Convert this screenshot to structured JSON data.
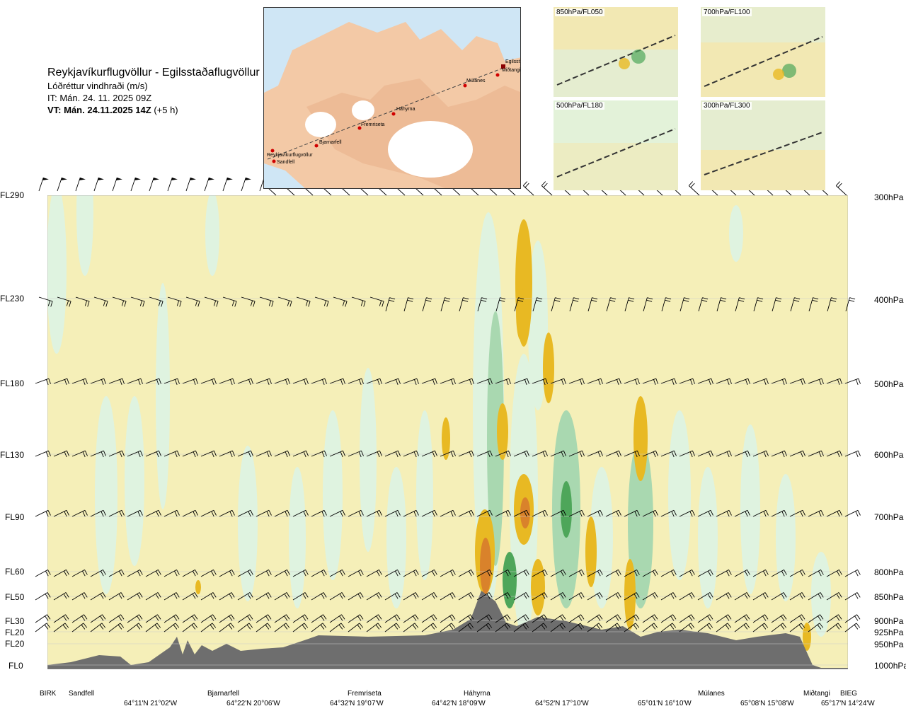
{
  "title": {
    "route": "Reykjavíkurflugvöllur - Egilsstaðaflugvöllur",
    "quantity": "Lóðréttur vindhraði (m/s)",
    "it": "IT: Mán. 24. 11. 2025 09Z",
    "vt_bold": "VT: Mán. 24.11.2025 14Z",
    "vt_rest": " (+5 h)"
  },
  "route_map": {
    "waypoints": [
      "Reykjavíkurflugvöllur",
      "Sandfell",
      "Bjarnarfell",
      "Fremriseta",
      "Háhyrna",
      "Múlanes",
      "Egilsst",
      "Miðtangi"
    ]
  },
  "mini_maps": [
    {
      "label": "850hPa/FL050"
    },
    {
      "label": "700hPa/FL100"
    },
    {
      "label": "500hPa/FL180"
    },
    {
      "label": "300hPa/FL300"
    }
  ],
  "chart_data": {
    "type": "heatmap",
    "title": "Lóðréttur vindhraði (m/s)",
    "y_levels": [
      {
        "fl": "FL290",
        "hpa": "300hPa"
      },
      {
        "fl": "FL230",
        "hpa": "400hPa"
      },
      {
        "fl": "FL180",
        "hpa": "500hPa"
      },
      {
        "fl": "FL130",
        "hpa": "600hPa"
      },
      {
        "fl": "FL90",
        "hpa": "700hPa"
      },
      {
        "fl": "FL60",
        "hpa": "800hPa"
      },
      {
        "fl": "FL50",
        "hpa": "850hPa"
      },
      {
        "fl": "FL30",
        "hpa": "900hPa"
      },
      {
        "fl": "FL20",
        "hpa": "925hPa"
      },
      {
        "fl": "FL20",
        "hpa": "950hPa"
      },
      {
        "fl": "FL0",
        "hpa": "1000hPa"
      }
    ],
    "x_waypoints": [
      "BIRK",
      "Sandfell",
      "Bjarnarfell",
      "Fremriseta",
      "Háhyrna",
      "Múlanes",
      "Miðtangi",
      "BIEG"
    ],
    "x_coords": [
      "64°11'N 21°02'W",
      "64°22'N 20°06'W",
      "64°32'N 19°07'W",
      "64°42'N 18°09'W",
      "64°52'N 17°10'W",
      "65°01'N 16°10'W",
      "65°08'N 15°08'W",
      "65°17'N 14°24'W"
    ],
    "colors": {
      "strong_up": "#d9822b",
      "moderate_up": "#e8b923",
      "weak_up": "#f2e9a6",
      "neutral": "#f5efb8",
      "weak_down": "#dff3e0",
      "moderate_down": "#a9d8b0",
      "strong_down": "#4ea65a",
      "terrain": "#6e6e6e"
    }
  }
}
